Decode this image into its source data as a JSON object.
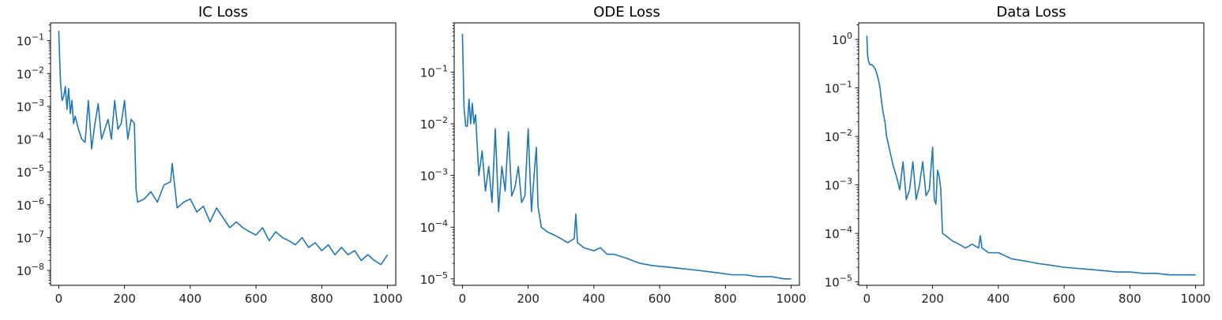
{
  "chart_data": [
    {
      "type": "line",
      "title": "IC Loss",
      "xlabel": "",
      "ylabel": "",
      "yscale": "log",
      "xlim": [
        -25,
        1025
      ],
      "ylim": [
        3.5e-09,
        0.35
      ],
      "xticks": [
        0,
        200,
        400,
        600,
        800,
        1000
      ],
      "yticks": [
        1e-08,
        1e-07,
        1e-06,
        1e-05,
        0.0001,
        0.001,
        0.01,
        0.1
      ],
      "ytick_labels": [
        {
          "base": "10",
          "exp": "−8"
        },
        {
          "base": "10",
          "exp": "−7"
        },
        {
          "base": "10",
          "exp": "−6"
        },
        {
          "base": "10",
          "exp": "−5"
        },
        {
          "base": "10",
          "exp": "−4"
        },
        {
          "base": "10",
          "exp": "−3"
        },
        {
          "base": "10",
          "exp": "−2"
        },
        {
          "base": "10",
          "exp": "−1"
        }
      ],
      "grid": false,
      "color": "#1f77b4",
      "series": [
        {
          "x": [
            0,
            5,
            10,
            15,
            20,
            25,
            30,
            35,
            40,
            45,
            50,
            60,
            70,
            80,
            90,
            100,
            110,
            120,
            130,
            140,
            150,
            160,
            170,
            180,
            190,
            200,
            210,
            220,
            230,
            235,
            240,
            260,
            280,
            300,
            320,
            340,
            345,
            360,
            380,
            400,
            420,
            440,
            460,
            480,
            500,
            520,
            540,
            560,
            580,
            600,
            620,
            640,
            660,
            680,
            700,
            720,
            740,
            760,
            780,
            800,
            820,
            840,
            860,
            880,
            900,
            920,
            940,
            960,
            980,
            1000
          ],
          "y": [
            0.2,
            0.006,
            0.0015,
            0.002,
            0.004,
            0.0008,
            0.0035,
            0.0006,
            0.0015,
            0.0003,
            0.0005,
            0.0002,
            0.0001,
            8e-05,
            0.0015,
            5e-05,
            0.0003,
            0.0012,
            0.0001,
            0.0002,
            0.0004,
            0.0001,
            0.0015,
            0.0002,
            0.0003,
            0.0015,
            0.0001,
            0.0004,
            0.0003,
            3e-06,
            1.2e-06,
            1.5e-06,
            2.5e-06,
            1.2e-06,
            4e-06,
            5e-06,
            1.8e-05,
            8e-07,
            1.2e-06,
            1.5e-06,
            6e-07,
            9e-07,
            3e-07,
            8e-07,
            4e-07,
            2e-07,
            3e-07,
            2e-07,
            1.5e-07,
            1.2e-07,
            2e-07,
            8e-08,
            1.5e-07,
            1e-07,
            8e-08,
            6e-08,
            1e-07,
            5e-08,
            7e-08,
            4e-08,
            6e-08,
            3e-08,
            5e-08,
            3e-08,
            4e-08,
            2e-08,
            3e-08,
            2e-08,
            1.5e-08,
            3e-08
          ]
        }
      ]
    },
    {
      "type": "line",
      "title": "ODE Loss",
      "xlabel": "",
      "ylabel": "",
      "yscale": "log",
      "xlim": [
        -25,
        1025
      ],
      "ylim": [
        7.5e-06,
        0.9
      ],
      "xticks": [
        0,
        200,
        400,
        600,
        800,
        1000
      ],
      "yticks": [
        1e-05,
        0.0001,
        0.001,
        0.01,
        0.1
      ],
      "ytick_labels": [
        {
          "base": "10",
          "exp": "−5"
        },
        {
          "base": "10",
          "exp": "−4"
        },
        {
          "base": "10",
          "exp": "−3"
        },
        {
          "base": "10",
          "exp": "−2"
        },
        {
          "base": "10",
          "exp": "−1"
        }
      ],
      "grid": false,
      "color": "#1f77b4",
      "series": [
        {
          "x": [
            0,
            5,
            10,
            15,
            20,
            25,
            30,
            35,
            40,
            50,
            60,
            70,
            80,
            90,
            100,
            110,
            120,
            130,
            140,
            150,
            160,
            170,
            180,
            190,
            200,
            210,
            220,
            225,
            230,
            240,
            260,
            280,
            300,
            320,
            340,
            345,
            350,
            370,
            400,
            420,
            440,
            460,
            500,
            540,
            580,
            620,
            660,
            700,
            740,
            780,
            820,
            860,
            900,
            940,
            980,
            1000
          ],
          "y": [
            0.55,
            0.02,
            0.009,
            0.009,
            0.03,
            0.01,
            0.025,
            0.01,
            0.015,
            0.001,
            0.003,
            0.0005,
            0.0015,
            0.0003,
            0.008,
            0.0002,
            0.0015,
            0.0005,
            0.007,
            0.0004,
            0.0006,
            0.0015,
            0.0003,
            0.0004,
            0.008,
            0.0002,
            0.0015,
            0.0035,
            0.00025,
            0.0001,
            8e-05,
            7e-05,
            6e-05,
            5e-05,
            6e-05,
            0.00018,
            5e-05,
            4e-05,
            3.5e-05,
            4e-05,
            3e-05,
            3e-05,
            2.5e-05,
            2e-05,
            1.8e-05,
            1.7e-05,
            1.6e-05,
            1.5e-05,
            1.4e-05,
            1.3e-05,
            1.2e-05,
            1.2e-05,
            1.1e-05,
            1.1e-05,
            1e-05,
            1e-05
          ]
        }
      ]
    },
    {
      "type": "line",
      "title": "Data Loss",
      "xlabel": "",
      "ylabel": "",
      "yscale": "log",
      "xlim": [
        -25,
        1025
      ],
      "ylim": [
        8.5e-06,
        2.2
      ],
      "xticks": [
        0,
        200,
        400,
        600,
        800,
        1000
      ],
      "yticks": [
        1e-05,
        0.0001,
        0.001,
        0.01,
        0.1,
        1
      ],
      "ytick_labels": [
        {
          "base": "10",
          "exp": "−5"
        },
        {
          "base": "10",
          "exp": "−4"
        },
        {
          "base": "10",
          "exp": "−3"
        },
        {
          "base": "10",
          "exp": "−2"
        },
        {
          "base": "10",
          "exp": "−1"
        },
        {
          "base": "10",
          "exp": "0"
        }
      ],
      "grid": false,
      "color": "#1f77b4",
      "series": [
        {
          "x": [
            0,
            2,
            5,
            10,
            15,
            20,
            25,
            30,
            35,
            40,
            45,
            50,
            55,
            60,
            70,
            80,
            90,
            100,
            110,
            120,
            130,
            140,
            150,
            160,
            170,
            180,
            190,
            200,
            205,
            210,
            215,
            220,
            225,
            230,
            240,
            260,
            280,
            300,
            320,
            340,
            345,
            350,
            370,
            400,
            440,
            480,
            520,
            560,
            600,
            640,
            680,
            720,
            760,
            800,
            840,
            880,
            920,
            960,
            1000
          ],
          "y": [
            1.2,
            0.5,
            0.35,
            0.3,
            0.3,
            0.28,
            0.25,
            0.2,
            0.15,
            0.1,
            0.05,
            0.03,
            0.02,
            0.01,
            0.005,
            0.0025,
            0.0015,
            0.0008,
            0.003,
            0.0005,
            0.0008,
            0.003,
            0.0005,
            0.001,
            0.003,
            0.0006,
            0.0008,
            0.006,
            0.0005,
            0.0004,
            0.002,
            0.0015,
            0.0008,
            0.0001,
            9e-05,
            7e-05,
            6e-05,
            5e-05,
            6e-05,
            5e-05,
            9e-05,
            5e-05,
            4e-05,
            4e-05,
            3e-05,
            2.7e-05,
            2.4e-05,
            2.2e-05,
            2e-05,
            1.9e-05,
            1.8e-05,
            1.7e-05,
            1.6e-05,
            1.6e-05,
            1.5e-05,
            1.5e-05,
            1.4e-05,
            1.4e-05,
            1.4e-05
          ]
        }
      ]
    }
  ]
}
